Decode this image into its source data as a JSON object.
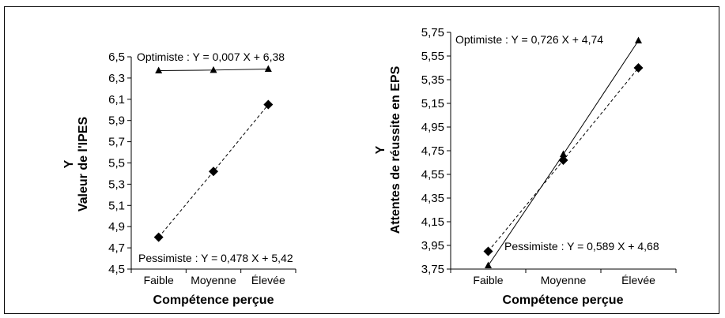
{
  "chart_data": [
    {
      "type": "line",
      "xlabel": "Compétence perçue",
      "ylabel_lines": [
        "Y",
        "Valeur de l'IPES"
      ],
      "categories": [
        "Faible",
        "Moyenne",
        "Élevée"
      ],
      "ylim": [
        4.5,
        6.5
      ],
      "yticks": [
        "4,5",
        "4,7",
        "4,9",
        "5,1",
        "5,3",
        "5,5",
        "5,7",
        "5,9",
        "6,1",
        "6,3",
        "6,5"
      ],
      "series": [
        {
          "name": "Optimiste",
          "marker": "triangle",
          "line": "solid",
          "values": [
            6.37,
            6.375,
            6.385
          ],
          "equation": "Optimiste : Y = 0,007 X + 6,38"
        },
        {
          "name": "Pessimiste",
          "marker": "diamond",
          "line": "dashed",
          "values": [
            4.8,
            5.42,
            6.05
          ],
          "equation": "Pessimiste : Y = 0,478 X + 5,42"
        }
      ]
    },
    {
      "type": "line",
      "xlabel": "Compétence perçue",
      "ylabel_lines": [
        "Y",
        "Attentes de réussite en EPS"
      ],
      "categories": [
        "Faible",
        "Moyenne",
        "Élevée"
      ],
      "ylim": [
        3.75,
        5.75
      ],
      "yticks": [
        "3,75",
        "3,95",
        "4,15",
        "4,35",
        "4,55",
        "4,75",
        "4,95",
        "5,15",
        "5,35",
        "5,55",
        "5,75"
      ],
      "series": [
        {
          "name": "Optimiste",
          "marker": "triangle",
          "line": "solid",
          "values": [
            3.78,
            4.72,
            5.68
          ],
          "equation": "Optimiste : Y = 0,726 X + 4,74"
        },
        {
          "name": "Pessimiste",
          "marker": "diamond",
          "line": "dashed",
          "values": [
            3.9,
            4.67,
            5.45
          ],
          "equation": "Pessimiste : Y = 0,589 X + 4,68"
        }
      ]
    }
  ]
}
